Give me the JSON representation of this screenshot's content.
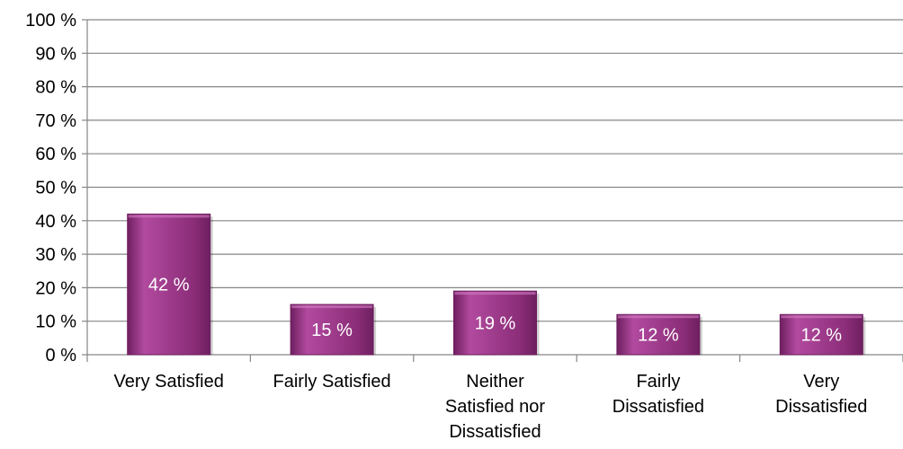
{
  "chart_data": {
    "type": "bar",
    "title": "",
    "xlabel": "",
    "ylabel": "",
    "categories": [
      [
        "Very Satisfied"
      ],
      [
        "Fairly Satisfied"
      ],
      [
        "Neither",
        "Satisfied nor",
        "Dissatisfied"
      ],
      [
        "Fairly",
        "Dissatisfied"
      ],
      [
        "Very",
        "Dissatisfied"
      ]
    ],
    "values": [
      42,
      15,
      19,
      12,
      12
    ],
    "data_labels": [
      "42 %",
      "15 %",
      "19 %",
      "12 %",
      "12 %"
    ],
    "ylim": [
      0,
      100
    ],
    "yticks": [
      0,
      10,
      20,
      30,
      40,
      50,
      60,
      70,
      80,
      90,
      100
    ],
    "ytick_labels": [
      "0 %",
      "10 %",
      "20 %",
      "30 %",
      "40 %",
      "50 %",
      "60 %",
      "70 %",
      "80 %",
      "90 %",
      "100 %"
    ],
    "grid": true,
    "legend": "none",
    "colors": {
      "bar": "#8b2d78",
      "bar_light": "#b24a9f",
      "bar_dark": "#6e1f60",
      "grid": "#868686",
      "axis": "#868686",
      "text": "#000000",
      "data_label": "#ffffff"
    }
  }
}
